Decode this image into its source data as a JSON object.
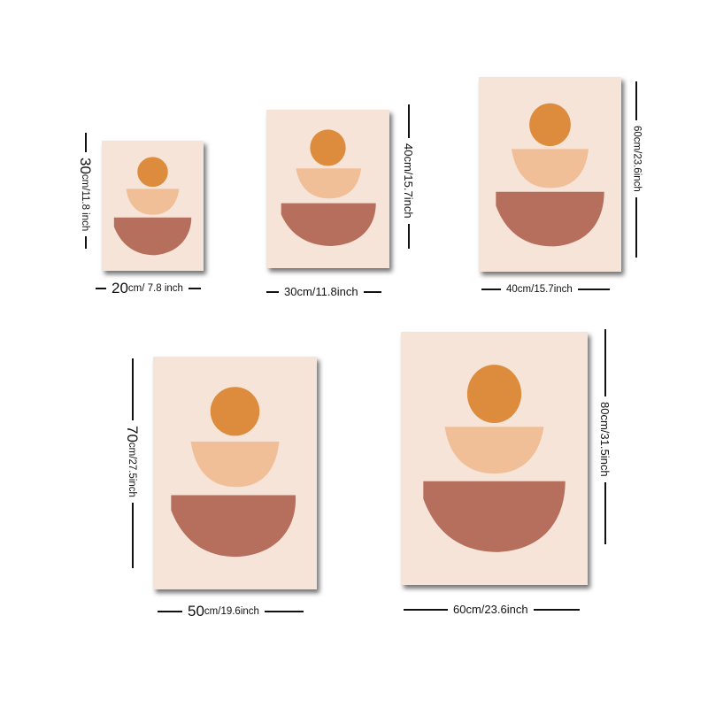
{
  "colors": {
    "background": "#ffffff",
    "poster": "#f6e4d8",
    "circle": "#dc8c3c",
    "middle_bowl": "#f0bf97",
    "bottom_bowl": "#b66f5d"
  },
  "sizes": {
    "s20x30": {
      "width_num": "20",
      "width_unit": "cm/ 7.8 inch",
      "height_num": "30",
      "height_unit": "cm/11.8 inch"
    },
    "s30x40": {
      "width_label": "30cm/11.8inch",
      "height_label": "40cm/15.7inch"
    },
    "s40x60": {
      "width_label": "40cm/15.7inch",
      "height_label": "60cm/23.6inch"
    },
    "s50x70": {
      "width_num": "50",
      "width_unit": "cm/19.6inch",
      "height_num": "70",
      "height_unit": "cm/27.5inch"
    },
    "s60x80": {
      "width_label": "60cm/23.6inch",
      "height_label": "80cm/31.5inch"
    }
  }
}
